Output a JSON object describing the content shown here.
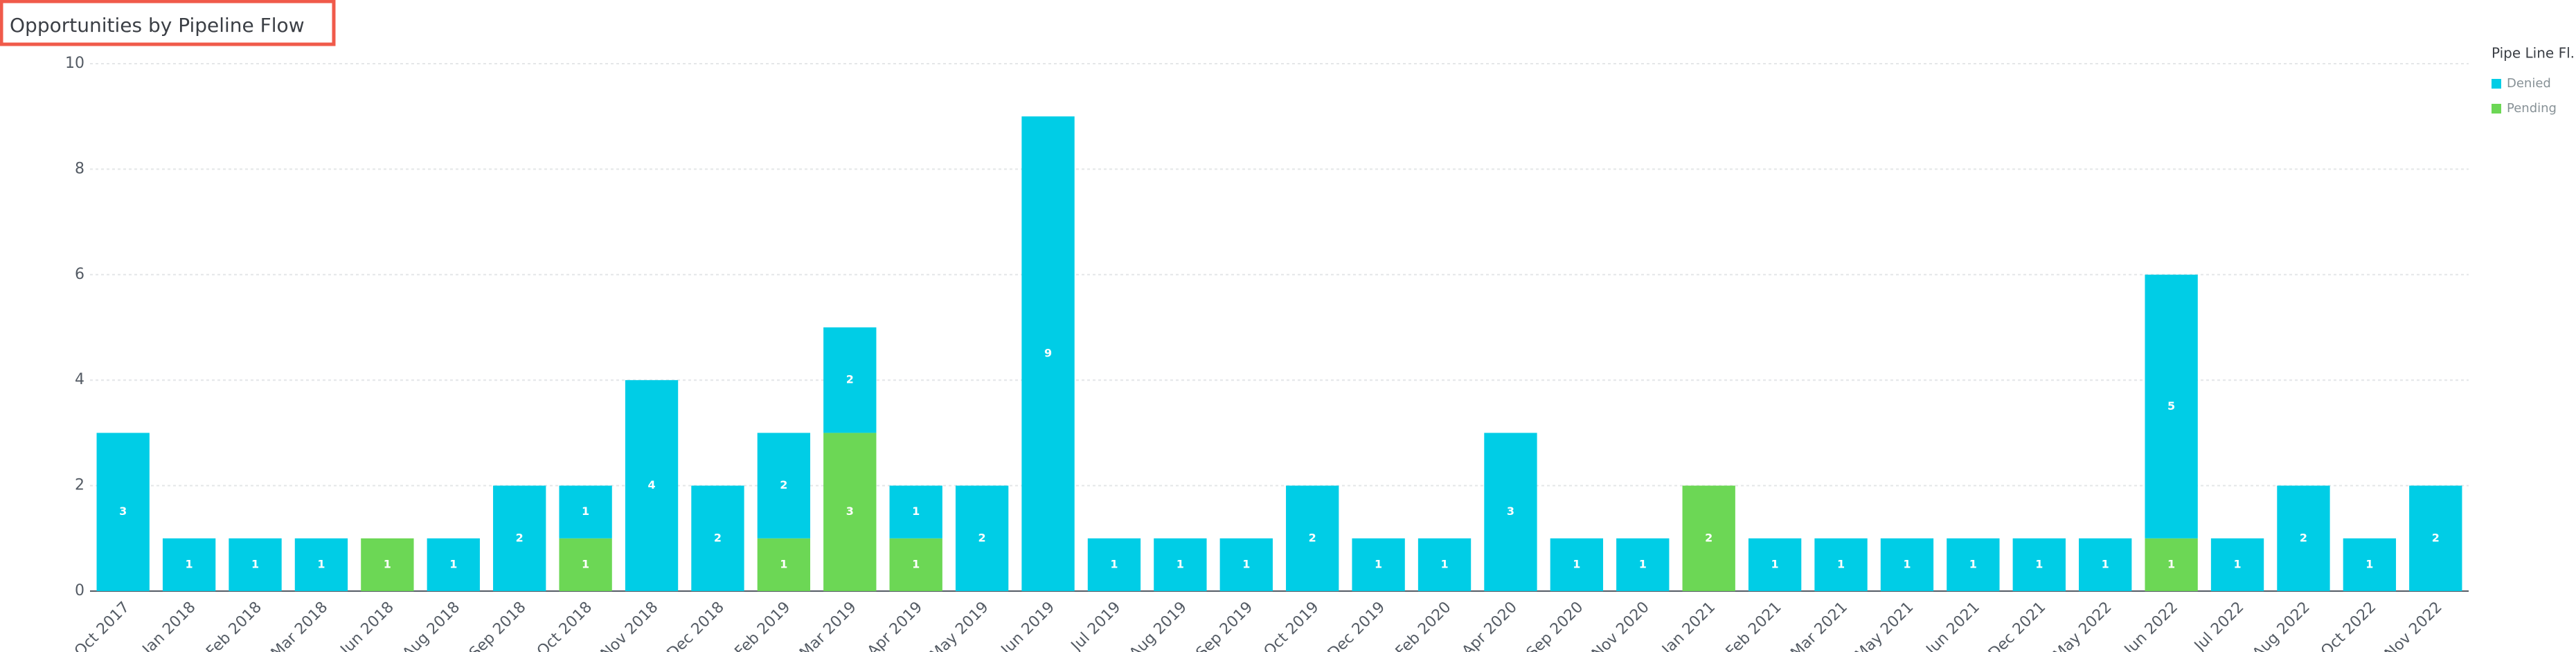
{
  "chart_data": {
    "type": "bar",
    "stacked": true,
    "title": "Opportunities by Pipeline Flow",
    "legend_title": "Pipe Line Fl...",
    "legend_position": "right",
    "grid": true,
    "categories": [
      "Oct 2017",
      "Jan 2018",
      "Feb 2018",
      "Mar 2018",
      "Jun 2018",
      "Aug 2018",
      "Sep 2018",
      "Oct 2018",
      "Nov 2018",
      "Dec 2018",
      "Feb 2019",
      "Mar 2019",
      "Apr 2019",
      "May 2019",
      "Jun 2019",
      "Jul 2019",
      "Aug 2019",
      "Sep 2019",
      "Oct 2019",
      "Dec 2019",
      "Feb 2020",
      "Apr 2020",
      "Sep 2020",
      "Nov 2020",
      "Jan 2021",
      "Feb 2021",
      "Mar 2021",
      "May 2021",
      "Jun 2021",
      "Dec 2021",
      "May 2022",
      "Jun 2022",
      "Jul 2022",
      "Aug 2022",
      "Oct 2022",
      "Nov 2022"
    ],
    "series": [
      {
        "name": "Pending",
        "color": "#6cd755",
        "values": [
          null,
          null,
          null,
          null,
          1,
          null,
          null,
          1,
          null,
          null,
          1,
          3,
          1,
          null,
          null,
          null,
          null,
          null,
          null,
          null,
          null,
          null,
          null,
          null,
          2,
          null,
          null,
          null,
          null,
          null,
          null,
          1,
          null,
          null,
          null,
          null
        ]
      },
      {
        "name": "Denied",
        "color": "#00cde6",
        "values": [
          3,
          1,
          1,
          1,
          null,
          1,
          2,
          1,
          4,
          2,
          2,
          2,
          1,
          2,
          9,
          1,
          1,
          1,
          2,
          1,
          1,
          3,
          1,
          1,
          null,
          1,
          1,
          1,
          1,
          1,
          1,
          5,
          1,
          2,
          1,
          2
        ]
      }
    ],
    "ylim": [
      0,
      10
    ],
    "yticks": [
      0,
      2,
      4,
      6,
      8,
      10
    ]
  }
}
